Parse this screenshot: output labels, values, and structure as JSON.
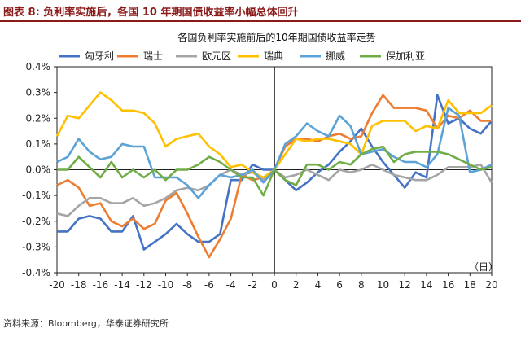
{
  "figure": {
    "title": "图表 8:   负利率实施后，各国 10 年期国债收益率小幅总体回升",
    "source": "资料来源：Bloomberg，华泰证券研究所"
  },
  "chart_data": {
    "type": "line",
    "title": "各国负利率实施前后的10年期国债收益率走势",
    "x_unit_label": "（日）",
    "x": [
      -20,
      -19,
      -18,
      -17,
      -16,
      -15,
      -14,
      -13,
      -12,
      -11,
      -10,
      -9,
      -8,
      -7,
      -6,
      -5,
      -4,
      -3,
      -2,
      -1,
      0,
      1,
      2,
      3,
      4,
      5,
      6,
      7,
      8,
      9,
      10,
      11,
      12,
      13,
      14,
      15,
      16,
      17,
      18,
      19,
      20
    ],
    "xlim": [
      -20,
      20
    ],
    "x_ticks": [
      -20,
      -18,
      -16,
      -14,
      -12,
      -10,
      -8,
      -6,
      -4,
      -2,
      0,
      2,
      4,
      6,
      8,
      10,
      12,
      14,
      16,
      18,
      20
    ],
    "ylim": [
      -0.004,
      0.004
    ],
    "y_ticks": [
      -0.004,
      -0.003,
      -0.002,
      -0.001,
      0,
      0.001,
      0.002,
      0.003,
      0.004
    ],
    "y_tick_labels": [
      "-0.4%",
      "-0.3%",
      "-0.2%",
      "-0.1%",
      "0.0%",
      "0.1%",
      "0.2%",
      "0.3%",
      "0.4%"
    ],
    "grid": false,
    "legend_position": "top",
    "series": [
      {
        "name": "匈牙利",
        "color": "#4472c4",
        "values": [
          -0.0024,
          -0.0024,
          -0.0019,
          -0.0018,
          -0.0019,
          -0.0024,
          -0.0024,
          -0.0018,
          -0.0031,
          -0.0028,
          -0.0025,
          -0.0021,
          -0.0025,
          -0.0028,
          -0.0028,
          -0.0025,
          -0.0004,
          -0.0004,
          0.0002,
          0,
          0,
          -0.0004,
          -0.0008,
          -0.0005,
          -0.0001,
          0.0002,
          0.0007,
          0.0011,
          0.0016,
          0.0009,
          0.0003,
          -0.0002,
          -0.0007,
          -0.0001,
          -0.0003,
          0.0029,
          0.0018,
          0.002,
          0.0016,
          0.0014,
          0.0019
        ]
      },
      {
        "name": "瑞士",
        "color": "#ed7d31",
        "values": [
          -0.0006,
          -0.0004,
          -0.0007,
          -0.0014,
          -0.0013,
          -0.002,
          -0.0022,
          -0.0019,
          -0.0023,
          -0.0021,
          -0.0012,
          -0.0009,
          -0.0017,
          -0.0026,
          -0.0034,
          -0.0027,
          -0.0019,
          -0.0002,
          -0.0004,
          -0.0003,
          0,
          0.0009,
          0.0012,
          0.0012,
          0.0011,
          0.0013,
          0.0014,
          0.0012,
          0.0013,
          0.0022,
          0.0029,
          0.0024,
          0.0024,
          0.0024,
          0.0023,
          0.0016,
          0.0021,
          0.002,
          0.0023,
          0.0019,
          0.0019
        ]
      },
      {
        "name": "欧元区",
        "color": "#a5a5a5",
        "values": [
          -0.0017,
          -0.0018,
          -0.0014,
          -0.0011,
          -0.0011,
          -0.0013,
          -0.0013,
          -0.0011,
          -0.0014,
          -0.0013,
          -0.0011,
          -0.0008,
          -0.0007,
          -0.0008,
          -0.0006,
          -0.0002,
          0,
          -0.0002,
          -0.0001,
          -0.0004,
          0,
          -0.0003,
          -0.0002,
          0,
          -0.0002,
          -0.0004,
          0,
          -0.0001,
          0,
          0.0002,
          0,
          -0.0002,
          -0.0003,
          -0.0004,
          -0.0004,
          -0.0002,
          0.0001,
          0.0001,
          0.0001,
          0.0002,
          -0.0005
        ]
      },
      {
        "name": "瑞典",
        "color": "#ffc000",
        "values": [
          0.0013,
          0.0021,
          0.002,
          0.0025,
          0.003,
          0.0027,
          0.0023,
          0.0023,
          0.0022,
          0.0018,
          0.0009,
          0.0012,
          0.0013,
          0.0014,
          0.0009,
          0.0006,
          0.0001,
          0.0002,
          -0.0001,
          -0.0003,
          0,
          0.0006,
          0.0012,
          0.0011,
          0.0012,
          0.0012,
          0.0011,
          0.001,
          0.0006,
          0.0017,
          0.0019,
          0.0019,
          0.0019,
          0.0015,
          0.0017,
          0.0016,
          0.0027,
          0.0022,
          0.0022,
          0.0022,
          0.0025
        ]
      },
      {
        "name": "挪威",
        "color": "#5ba3d6",
        "values": [
          0.0003,
          0.0005,
          0.0012,
          0.0007,
          0.0004,
          0.0005,
          0.001,
          0.0009,
          0.0009,
          -0.0003,
          -0.0003,
          -0.0003,
          -0.0006,
          -0.0011,
          -0.0006,
          -0.0002,
          -0.0003,
          -0.0002,
          0,
          -0.0005,
          0,
          0.001,
          0.0013,
          0.0018,
          0.0015,
          0.0013,
          0.0021,
          0.0017,
          0.0006,
          0.0007,
          0.0008,
          0.0005,
          0.0003,
          0.0003,
          0.0001,
          0.0006,
          0.0024,
          0.0021,
          -0.0001,
          0,
          0.0002
        ]
      },
      {
        "name": "保加利亚",
        "color": "#70ad47",
        "values": [
          0,
          0,
          0.0005,
          0.0001,
          -0.0003,
          0.0003,
          -0.0003,
          0,
          -0.0003,
          0,
          -0.0004,
          0,
          0,
          0.0002,
          0.0005,
          0.0003,
          0,
          -0.0003,
          -0.0003,
          -0.001,
          0,
          -0.0004,
          -0.0006,
          0.0002,
          0.0002,
          0,
          0.0003,
          0.0002,
          0.0006,
          0.0008,
          0.0009,
          0.0003,
          0.0006,
          0.0007,
          0.0007,
          0.0007,
          0.0006,
          0.0004,
          0.0002,
          0,
          0.0001
        ]
      }
    ]
  }
}
